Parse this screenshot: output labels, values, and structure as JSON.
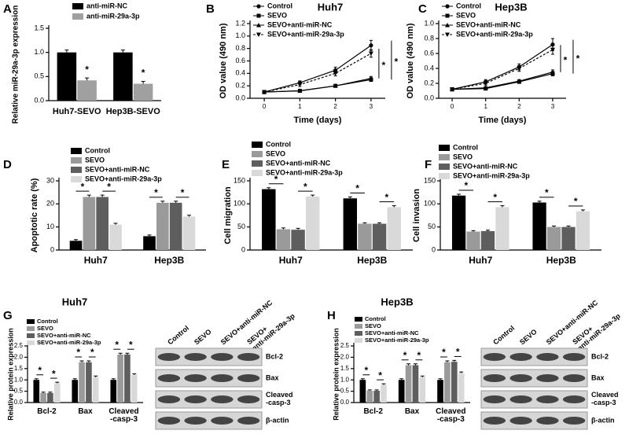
{
  "chart_data": [
    {
      "panel": "A",
      "type": "bar",
      "ylabel": "Relative miR-29a-3p expression",
      "categories": [
        "Huh7-SEVO",
        "Hep3B-SEVO"
      ],
      "series": [
        {
          "name": "anti-miR-NC",
          "color": "#000000",
          "values": [
            1.0,
            1.0
          ],
          "errors": [
            0.05,
            0.05
          ]
        },
        {
          "name": "anti-miR-29a-3p",
          "color": "#a0a0a0",
          "values": [
            0.42,
            0.35
          ],
          "errors": [
            0.05,
            0.05
          ]
        }
      ],
      "ylim": [
        0,
        1.5
      ],
      "yticks": [
        {
          "value": 0,
          "label": "0.0"
        },
        {
          "value": 0.5,
          "label": "0.5"
        },
        {
          "value": 1,
          "label": "1.0"
        },
        {
          "value": 1.5,
          "label": "1.5"
        }
      ],
      "significance": {
        "label": "*",
        "pairs": [
          [
            1,
            1
          ]
        ]
      }
    },
    {
      "panel": "B",
      "type": "line",
      "title": "Huh7",
      "xlabel": "Time (days)",
      "ylabel": "OD value (490 nm)",
      "x": [
        0,
        1,
        2,
        3
      ],
      "xlim": [
        -0.4,
        3.4
      ],
      "xticks": [
        0,
        1,
        2,
        3
      ],
      "series": [
        {
          "name": "Control",
          "color": "#000000",
          "marker": "circle",
          "values": [
            0.1,
            0.25,
            0.45,
            0.85
          ],
          "errors": [
            0.01,
            0.03,
            0.05,
            0.08
          ]
        },
        {
          "name": "SEVO",
          "color": "#000000",
          "marker": "square",
          "values": [
            0.1,
            0.12,
            0.2,
            0.3
          ],
          "errors": [
            0.01,
            0.01,
            0.02,
            0.03
          ]
        },
        {
          "name": "SEVO+anti-miR-NC",
          "color": "#000000",
          "marker": "triangle",
          "values": [
            0.1,
            0.12,
            0.2,
            0.32
          ],
          "errors": [
            0.01,
            0.01,
            0.02,
            0.03
          ]
        },
        {
          "name": "SEVO+anti-miR-29a-3p",
          "color": "#000000",
          "marker": "triangle-down",
          "dash": true,
          "values": [
            0.1,
            0.22,
            0.4,
            0.72
          ],
          "errors": [
            0.01,
            0.03,
            0.04,
            0.06
          ]
        }
      ],
      "ylim": [
        0,
        1.2
      ],
      "yticks": [
        {
          "value": 0,
          "label": "0.0"
        },
        {
          "value": 0.2,
          "label": "0.2"
        },
        {
          "value": 0.4,
          "label": "0.4"
        },
        {
          "value": 0.6,
          "label": "0.6"
        },
        {
          "value": 0.8,
          "label": "0.8"
        },
        {
          "value": 1,
          "label": "1.0"
        },
        {
          "value": 1.2,
          "label": "1.2"
        }
      ],
      "significance": {
        "label": "*",
        "pairs": [
          [
            3,
            2
          ],
          [
            0,
            1
          ]
        ]
      }
    },
    {
      "panel": "C",
      "type": "line",
      "title": "Hep3B",
      "xlabel": "Time (days)",
      "ylabel": "OD value (490 nm)",
      "x": [
        0,
        1,
        2,
        3
      ],
      "xlim": [
        -0.4,
        3.4
      ],
      "xticks": [
        0,
        1,
        2,
        3
      ],
      "series": [
        {
          "name": "Control",
          "color": "#000000",
          "marker": "circle",
          "values": [
            0.12,
            0.22,
            0.42,
            0.72
          ],
          "errors": [
            0.01,
            0.03,
            0.04,
            0.08
          ]
        },
        {
          "name": "SEVO",
          "color": "#000000",
          "marker": "square",
          "values": [
            0.12,
            0.13,
            0.22,
            0.33
          ],
          "errors": [
            0.01,
            0.01,
            0.02,
            0.03
          ]
        },
        {
          "name": "SEVO+anti-miR-NC",
          "color": "#000000",
          "marker": "triangle",
          "values": [
            0.12,
            0.14,
            0.23,
            0.35
          ],
          "errors": [
            0.01,
            0.01,
            0.02,
            0.03
          ]
        },
        {
          "name": "SEVO+anti-miR-29a-3p",
          "color": "#000000",
          "marker": "triangle-down",
          "dash": true,
          "values": [
            0.12,
            0.2,
            0.4,
            0.65
          ],
          "errors": [
            0.01,
            0.03,
            0.04,
            0.06
          ]
        }
      ],
      "ylim": [
        0,
        1.0
      ],
      "yticks": [
        {
          "value": 0,
          "label": "0.0"
        },
        {
          "value": 0.2,
          "label": "0.2"
        },
        {
          "value": 0.4,
          "label": "0.4"
        },
        {
          "value": 0.6,
          "label": "0.6"
        },
        {
          "value": 0.8,
          "label": "0.8"
        },
        {
          "value": 1,
          "label": "1.0"
        }
      ],
      "significance": {
        "label": "*",
        "pairs": [
          [
            3,
            2
          ],
          [
            0,
            1
          ]
        ]
      }
    },
    {
      "panel": "D",
      "type": "bar",
      "ylabel": "Apoptotic rate (%)",
      "categories": [
        "Huh7",
        "Hep3B"
      ],
      "series": [
        {
          "name": "Control",
          "color": "#000000",
          "values": [
            4,
            6
          ],
          "errors": [
            0.5,
            0.5
          ]
        },
        {
          "name": "SEVO",
          "color": "#9a9a9a",
          "values": [
            23,
            20.5
          ],
          "errors": [
            0.8,
            0.7
          ]
        },
        {
          "name": "SEVO+anti-miR-NC",
          "color": "#5e5e5e",
          "values": [
            23,
            20.5
          ],
          "errors": [
            0.8,
            0.7
          ]
        },
        {
          "name": "SEVO+anti-miR-29a-3p",
          "color": "#d9d9d9",
          "values": [
            11,
            14.5
          ],
          "errors": [
            0.6,
            0.6
          ]
        }
      ],
      "ylim": [
        0,
        30
      ],
      "yticks": [
        0,
        10,
        20,
        30
      ],
      "significance": {
        "label": "*",
        "pairs": [
          [
            0,
            1
          ],
          [
            2,
            3
          ]
        ]
      }
    },
    {
      "panel": "E",
      "type": "bar",
      "ylabel": "Cell migration",
      "categories": [
        "Huh7",
        "Hep3B"
      ],
      "series": [
        {
          "name": "Control",
          "color": "#000000",
          "values": [
            132,
            112
          ],
          "errors": [
            3,
            3
          ]
        },
        {
          "name": "SEVO",
          "color": "#9a9a9a",
          "values": [
            45,
            57
          ],
          "errors": [
            3,
            2
          ]
        },
        {
          "name": "SEVO+anti-miR-NC",
          "color": "#5e5e5e",
          "values": [
            44,
            57
          ],
          "errors": [
            3,
            2
          ]
        },
        {
          "name": "SEVO+anti-miR-29a-3p",
          "color": "#d9d9d9",
          "values": [
            116,
            93
          ],
          "errors": [
            3,
            3
          ]
        }
      ],
      "ylim": [
        0,
        150
      ],
      "yticks": [
        0,
        50,
        100,
        150
      ],
      "significance": {
        "label": "*",
        "pairs": [
          [
            0,
            1
          ],
          [
            2,
            3
          ]
        ]
      }
    },
    {
      "panel": "F",
      "type": "bar",
      "ylabel": "Cell invasion",
      "categories": [
        "Huh7",
        "Hep3B"
      ],
      "series": [
        {
          "name": "Control",
          "color": "#000000",
          "values": [
            118,
            103
          ],
          "errors": [
            3,
            3
          ]
        },
        {
          "name": "SEVO",
          "color": "#9a9a9a",
          "values": [
            40,
            50
          ],
          "errors": [
            2,
            2
          ]
        },
        {
          "name": "SEVO+anti-miR-NC",
          "color": "#5e5e5e",
          "values": [
            41,
            50
          ],
          "errors": [
            2,
            2
          ]
        },
        {
          "name": "SEVO+anti-miR-29a-3p",
          "color": "#d9d9d9",
          "values": [
            93,
            84
          ],
          "errors": [
            3,
            3
          ]
        }
      ],
      "ylim": [
        0,
        150
      ],
      "yticks": [
        0,
        50,
        100,
        150
      ],
      "significance": {
        "label": "*",
        "pairs": [
          [
            0,
            1
          ],
          [
            2,
            3
          ]
        ]
      }
    },
    {
      "panel": "G",
      "type": "bar",
      "title": "Huh7",
      "ylabel": "Relative protein expression",
      "categories": [
        "Bcl-2",
        "Bax",
        "Cleaved -casp-3"
      ],
      "series": [
        {
          "name": "Control",
          "color": "#000000",
          "values": [
            1.0,
            1.0,
            1.0
          ],
          "errors": [
            0.05,
            0.05,
            0.05
          ]
        },
        {
          "name": "SEVO",
          "color": "#9a9a9a",
          "values": [
            0.42,
            1.78,
            2.12
          ],
          "errors": [
            0.04,
            0.06,
            0.06
          ]
        },
        {
          "name": "SEVO+anti-miR-NC",
          "color": "#5e5e5e",
          "values": [
            0.42,
            1.78,
            2.12
          ],
          "errors": [
            0.04,
            0.06,
            0.06
          ]
        },
        {
          "name": "SEVO+anti-miR-29a-3p",
          "color": "#d9d9d9",
          "values": [
            0.85,
            1.12,
            1.22
          ],
          "errors": [
            0.05,
            0.05,
            0.05
          ]
        }
      ],
      "ylim": [
        0,
        2.5
      ],
      "yticks": [
        {
          "value": 0,
          "label": "0.0"
        },
        {
          "value": 0.5,
          "label": "0.5"
        },
        {
          "value": 1,
          "label": "1.0"
        },
        {
          "value": 1.5,
          "label": "1.5"
        },
        {
          "value": 2,
          "label": "2.0"
        },
        {
          "value": 2.5,
          "label": "2.5"
        }
      ],
      "significance": {
        "label": "*",
        "pairs": [
          [
            0,
            1
          ],
          [
            2,
            3
          ]
        ]
      }
    },
    {
      "panel": "H",
      "type": "bar",
      "title": "Hep3B",
      "ylabel": "Relative protein expression",
      "categories": [
        "Bcl-2",
        "Bax",
        "Cleaved -casp-3"
      ],
      "series": [
        {
          "name": "Control",
          "color": "#000000",
          "values": [
            1.0,
            1.0,
            1.0
          ],
          "errors": [
            0.05,
            0.05,
            0.05
          ]
        },
        {
          "name": "SEVO",
          "color": "#9a9a9a",
          "values": [
            0.52,
            1.65,
            1.78
          ],
          "errors": [
            0.04,
            0.06,
            0.06
          ]
        },
        {
          "name": "SEVO+anti-miR-NC",
          "color": "#5e5e5e",
          "values": [
            0.52,
            1.65,
            1.8
          ],
          "errors": [
            0.04,
            0.06,
            0.06
          ]
        },
        {
          "name": "SEVO+anti-miR-29a-3p",
          "color": "#d9d9d9",
          "values": [
            0.78,
            1.12,
            1.3
          ],
          "errors": [
            0.05,
            0.05,
            0.05
          ]
        }
      ],
      "ylim": [
        0,
        2.5
      ],
      "yticks": [
        {
          "value": 0,
          "label": "0.0"
        },
        {
          "value": 0.5,
          "label": "0.5"
        },
        {
          "value": 1,
          "label": "1.0"
        },
        {
          "value": 1.5,
          "label": "1.5"
        },
        {
          "value": 2,
          "label": "2.0"
        },
        {
          "value": 2.5,
          "label": "2.5"
        }
      ],
      "significance": {
        "label": "*",
        "pairs": [
          [
            0,
            1
          ],
          [
            2,
            3
          ]
        ]
      }
    }
  ],
  "blots": [
    {
      "lanes": [
        "Control",
        "SEVO",
        "SEVO+anti-miR-NC",
        "SEVO+ anti-miR-29a-3p"
      ],
      "rows": [
        "Bcl-2",
        "Bax",
        "Cleaved -casp-3",
        "β-actin"
      ]
    },
    {
      "lanes": [
        "Control",
        "SEVO",
        "SEVO+anti-miR-NC",
        "SEVO+ anti-miR-29a-3p"
      ],
      "rows": [
        "Bcl-2",
        "Bax",
        "Cleaved -casp-3",
        "β-actin"
      ]
    }
  ]
}
